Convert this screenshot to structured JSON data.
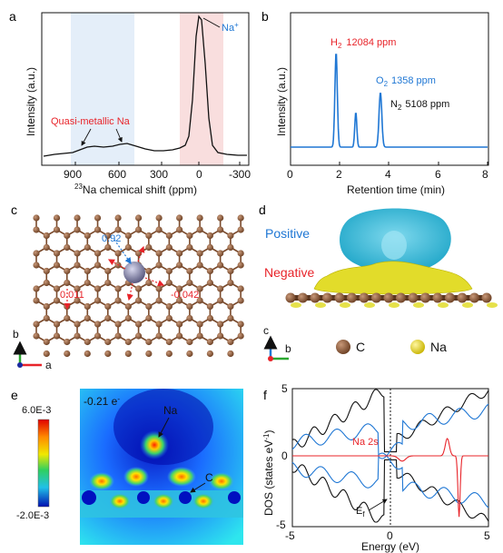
{
  "panels": {
    "a": {
      "letter": "a",
      "ylabel": "Intensity (a.u.)",
      "xlabel_sup": "23",
      "xlabel_rest": "Na chemical shift (ppm)",
      "xticks": [
        "900",
        "600",
        "300",
        "0",
        "-300"
      ],
      "peak_label": "Na",
      "peak_sup": "+",
      "annotation": "Quasi-metallic Na"
    },
    "b": {
      "letter": "b",
      "ylabel": "Intensity (a.u.)",
      "xlabel": "Retention time (min)",
      "xticks": [
        "0",
        "2",
        "4",
        "6",
        "8"
      ],
      "h2_label": "H",
      "h2_sub": "2",
      "h2_value": "12084 ppm",
      "o2_label": "O",
      "o2_sub": "2",
      "o2_value": "1358 ppm",
      "n2_label": "N",
      "n2_sub": "2",
      "n2_value": "5108 ppm"
    },
    "c": {
      "letter": "c",
      "charge_1": "0.92",
      "charge_2": "0.011",
      "charge_3": "-0.042",
      "axis_b": "b",
      "axis_a": "a"
    },
    "d": {
      "letter": "d",
      "positive": "Positive",
      "negative": "Negative",
      "legend_c": "C",
      "legend_na": "Na",
      "axis_c": "c",
      "axis_b": "b"
    },
    "e": {
      "letter": "e",
      "scale_max": "6.0E-3",
      "scale_min": "-2.0E-3",
      "charge_text": "-0.21 e",
      "charge_sup": "-",
      "na_label": "Na",
      "c_label": "C"
    },
    "f": {
      "letter": "f",
      "ylabel": "DOS (states eV",
      "ylabel_sup": "-1",
      "ylabel_end": ")",
      "xlabel": "Energy (eV)",
      "xticks": [
        "-5",
        "0",
        "5"
      ],
      "yticks": [
        "5",
        "0",
        "-5"
      ],
      "na2s": "Na 2s",
      "ef_label": "E",
      "ef_sub": "f"
    }
  },
  "colors": {
    "blue": "#1f77d4",
    "red": "#e8242a",
    "atom_c": "#8a5a3c",
    "atom_na": "#8888a8",
    "positive": "#3cb6d8",
    "negative": "#e2dc2a"
  }
}
